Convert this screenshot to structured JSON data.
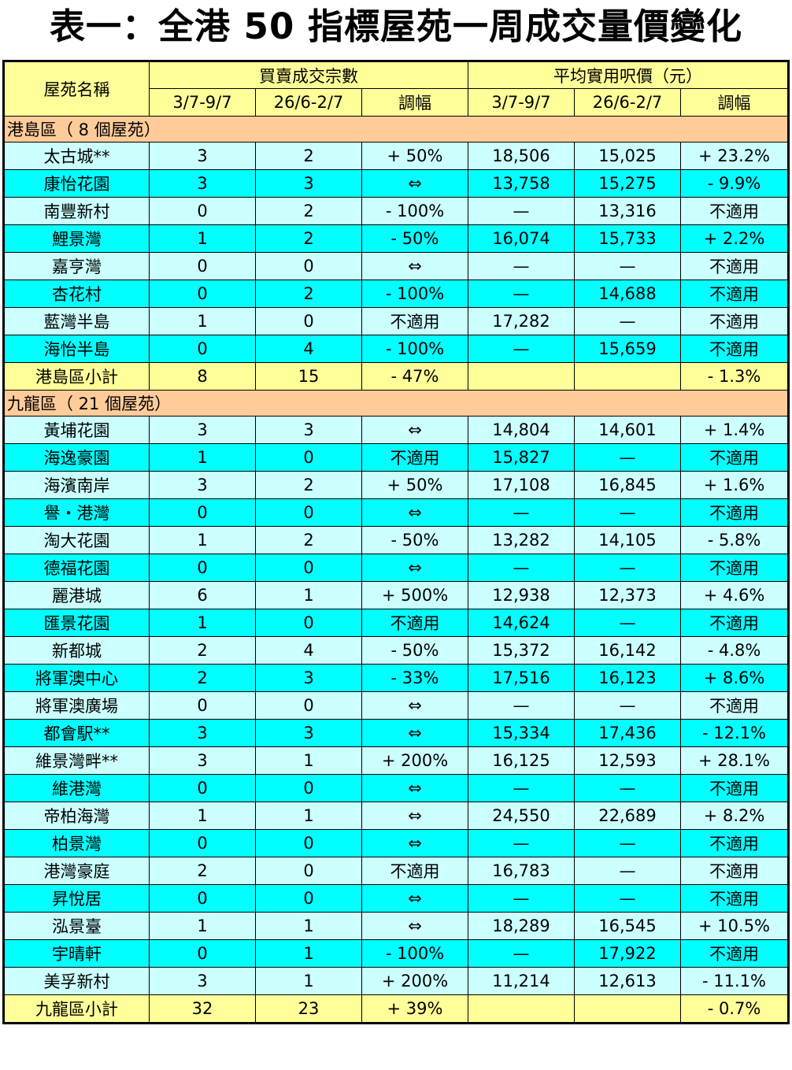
{
  "title": "表一：全港 50 指標屋苑一周成交量價變化",
  "header": {
    "estate_name": "屋苑名稱",
    "transactions": "買賣成交宗數",
    "avg_price": "平均實用呎價（元）",
    "week_current": "3/7-9/7",
    "week_previous": "26/6-2/7",
    "change": "調幅"
  },
  "sections": [
    {
      "label": "港島區（ 8 個屋苑）",
      "rows": [
        [
          "太古城**",
          "3",
          "2",
          "+ 50%",
          "18,506",
          "15,025",
          "+ 23.2%"
        ],
        [
          "康怡花園",
          "3",
          "3",
          "⇔",
          "13,758",
          "15,275",
          "- 9.9%"
        ],
        [
          "南豐新村",
          "0",
          "2",
          "- 100%",
          "—",
          "13,316",
          "不適用"
        ],
        [
          "鯉景灣",
          "1",
          "2",
          "- 50%",
          "16,074",
          "15,733",
          "+ 2.2%"
        ],
        [
          "嘉亨灣",
          "0",
          "0",
          "⇔",
          "—",
          "—",
          "不適用"
        ],
        [
          "杏花村",
          "0",
          "2",
          "- 100%",
          "—",
          "14,688",
          "不適用"
        ],
        [
          "藍灣半島",
          "1",
          "0",
          "不適用",
          "17,282",
          "—",
          "不適用"
        ],
        [
          "海怡半島",
          "0",
          "4",
          "- 100%",
          "—",
          "15,659",
          "不適用"
        ]
      ],
      "subtotal": [
        "港島區小計",
        "8",
        "15",
        "- 47%",
        "",
        "",
        "- 1.3%"
      ]
    },
    {
      "label": "九龍區（ 21 個屋苑）",
      "rows": [
        [
          "黃埔花園",
          "3",
          "3",
          "⇔",
          "14,804",
          "14,601",
          "+ 1.4%"
        ],
        [
          "海逸豪園",
          "1",
          "0",
          "不適用",
          "15,827",
          "—",
          "不適用"
        ],
        [
          "海濱南岸",
          "3",
          "2",
          "+ 50%",
          "17,108",
          "16,845",
          "+ 1.6%"
        ],
        [
          "譽・港灣",
          "0",
          "0",
          "⇔",
          "—",
          "—",
          "不適用"
        ],
        [
          "淘大花園",
          "1",
          "2",
          "- 50%",
          "13,282",
          "14,105",
          "- 5.8%"
        ],
        [
          "德福花園",
          "0",
          "0",
          "⇔",
          "—",
          "—",
          "不適用"
        ],
        [
          "麗港城",
          "6",
          "1",
          "+ 500%",
          "12,938",
          "12,373",
          "+ 4.6%"
        ],
        [
          "匯景花園",
          "1",
          "0",
          "不適用",
          "14,624",
          "—",
          "不適用"
        ],
        [
          "新都城",
          "2",
          "4",
          "- 50%",
          "15,372",
          "16,142",
          "- 4.8%"
        ],
        [
          "將軍澳中心",
          "2",
          "3",
          "- 33%",
          "17,516",
          "16,123",
          "+ 8.6%"
        ],
        [
          "將軍澳廣場",
          "0",
          "0",
          "⇔",
          "—",
          "—",
          "不適用"
        ],
        [
          "都會駅**",
          "3",
          "3",
          "⇔",
          "15,334",
          "17,436",
          "- 12.1%"
        ],
        [
          "維景灣畔**",
          "3",
          "1",
          "+ 200%",
          "16,125",
          "12,593",
          "+ 28.1%"
        ],
        [
          "維港灣",
          "0",
          "0",
          "⇔",
          "—",
          "—",
          "不適用"
        ],
        [
          "帝柏海灣",
          "1",
          "1",
          "⇔",
          "24,550",
          "22,689",
          "+ 8.2%"
        ],
        [
          "柏景灣",
          "0",
          "0",
          "⇔",
          "—",
          "—",
          "不適用"
        ],
        [
          "港灣豪庭",
          "2",
          "0",
          "不適用",
          "16,783",
          "—",
          "不適用"
        ],
        [
          "昇悅居",
          "0",
          "0",
          "⇔",
          "—",
          "—",
          "不適用"
        ],
        [
          "泓景臺",
          "1",
          "1",
          "⇔",
          "18,289",
          "16,545",
          "+ 10.5%"
        ],
        [
          "宇晴軒",
          "0",
          "1",
          "- 100%",
          "—",
          "17,922",
          "不適用"
        ],
        [
          "美孚新村",
          "3",
          "1",
          "+ 200%",
          "11,214",
          "12,613",
          "- 11.1%"
        ]
      ],
      "subtotal": [
        "九龍區小計",
        "32",
        "23",
        "+ 39%",
        "",
        "",
        "- 0.7%"
      ]
    }
  ]
}
